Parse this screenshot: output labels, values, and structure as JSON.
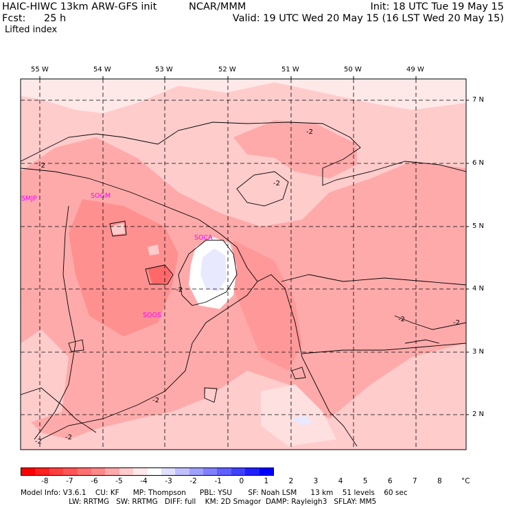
{
  "header": {
    "title_left": "HAIC-HIWC 13km ARW-GFS init",
    "org": "NCAR/MMM",
    "init": "Init: 18 UTC Tue 19 May 15",
    "fcst_label": "Fcst:",
    "fcst_value": "25 h",
    "valid": "Valid: 19 UTC Wed 20 May 15 (16 LST Wed 20 May 15)",
    "field": "Lifted index"
  },
  "map": {
    "lon_labels": [
      "55 W",
      "54 W",
      "53 W",
      "52 W",
      "51 W",
      "50 W",
      "49 W"
    ],
    "lat_labels": [
      "7 N",
      "6 N",
      "5 N",
      "4 N",
      "3 N",
      "2 N"
    ],
    "stations": [
      "SMJP",
      "SOGM",
      "SOCA",
      "SOOS"
    ],
    "contour_label": "-2",
    "colors": {
      "background_fill": "#ffcccc",
      "mid_fill": "#ffaaaa",
      "dark_fill": "#ff8080",
      "pale_fill": "#ffe8e8",
      "white_fill": "#ffffff",
      "blue_fill": "#e8e8ff",
      "station_color": "#ff00ff"
    }
  },
  "colorbar": {
    "colors": [
      "#ff0000",
      "#ff2020",
      "#ff4040",
      "#ff5555",
      "#ff7070",
      "#ff8888",
      "#ffaaaa",
      "#ffcccc",
      "#ffe8e8",
      "#ffffff",
      "#e0e0ff",
      "#c0c0ff",
      "#a0a0ff",
      "#8080ff",
      "#6060ff",
      "#4040ff",
      "#2020ff",
      "#0000ff"
    ],
    "ticks": [
      "-8",
      "-7",
      "-6",
      "-5",
      "-4",
      "-3",
      "-2",
      "-1",
      "0",
      "1",
      "2",
      "3",
      "4",
      "5",
      "6",
      "7",
      "8"
    ],
    "unit": "°C"
  },
  "footer": {
    "line1": "Model Info: V3.6.1    CU: KF      MP: Thompson      PBL: YSU       SF: Noah LSM      13 km    51 levels    60 sec",
    "line2": "                     LW: RRTMG   SW: RRTMG   DIFF: full    KM: 2D Smagor  DAMP: Rayleigh3   SFLAY: MM5"
  }
}
